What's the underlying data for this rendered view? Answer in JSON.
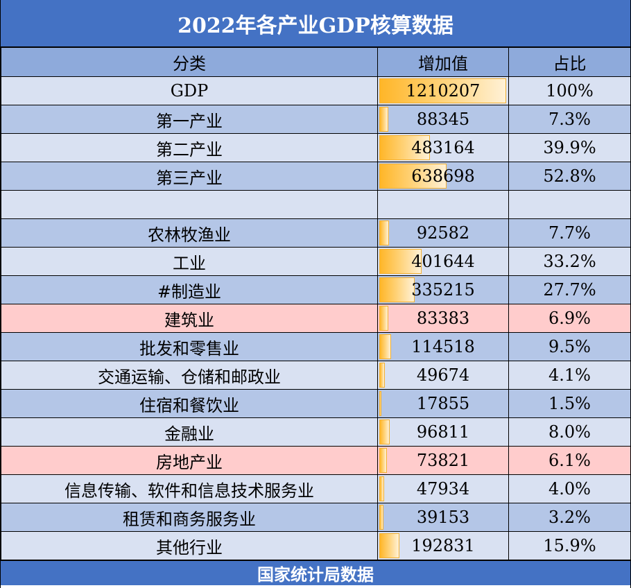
{
  "title": "2022年各产业GDP核算数据",
  "headers": {
    "category": "分类",
    "value": "增加值",
    "share": "占比"
  },
  "rows": [
    {
      "category": "GDP",
      "value": "1210207",
      "share": "100%",
      "style": "light"
    },
    {
      "category": "第一产业",
      "value": "88345",
      "share": "7.3%",
      "style": "dark"
    },
    {
      "category": "第二产业",
      "value": "483164",
      "share": "39.9%",
      "style": "light"
    },
    {
      "category": "第三产业",
      "value": "638698",
      "share": "52.8%",
      "style": "dark"
    },
    {
      "category": "",
      "value": "",
      "share": "",
      "style": "blank"
    },
    {
      "category": "农林牧渔业",
      "value": "92582",
      "share": "7.7%",
      "style": "dark"
    },
    {
      "category": "工业",
      "value": "401644",
      "share": "33.2%",
      "style": "light"
    },
    {
      "category": "#制造业",
      "value": "335215",
      "share": "27.7%",
      "style": "dark"
    },
    {
      "category": "建筑业",
      "value": "83383",
      "share": "6.9%",
      "style": "pink"
    },
    {
      "category": "批发和零售业",
      "value": "114518",
      "share": "9.5%",
      "style": "dark"
    },
    {
      "category": "交通运输、仓储和邮政业",
      "value": "49674",
      "share": "4.1%",
      "style": "light"
    },
    {
      "category": "住宿和餐饮业",
      "value": "17855",
      "share": "1.5%",
      "style": "dark"
    },
    {
      "category": "金融业",
      "value": "96811",
      "share": "8.0%",
      "style": "light"
    },
    {
      "category": "房地产业",
      "value": "73821",
      "share": "6.1%",
      "style": "pink"
    },
    {
      "category": "信息传输、软件和信息技术服务业",
      "value": "47934",
      "share": "4.0%",
      "style": "light"
    },
    {
      "category": "租赁和商务服务业",
      "value": "39153",
      "share": "3.2%",
      "style": "dark"
    },
    {
      "category": "其他行业",
      "value": "192831",
      "share": "15.9%",
      "style": "light"
    }
  ],
  "bar_max": 1210207,
  "colors": {
    "title_bg": "#4472c4",
    "header_bg": "#8eaadb",
    "row_light": "#d9e1f2",
    "row_dark": "#b4c6e7",
    "row_highlight": "#ffcccc",
    "bar": "#ffb628"
  },
  "footer": "国家统计局数据"
}
